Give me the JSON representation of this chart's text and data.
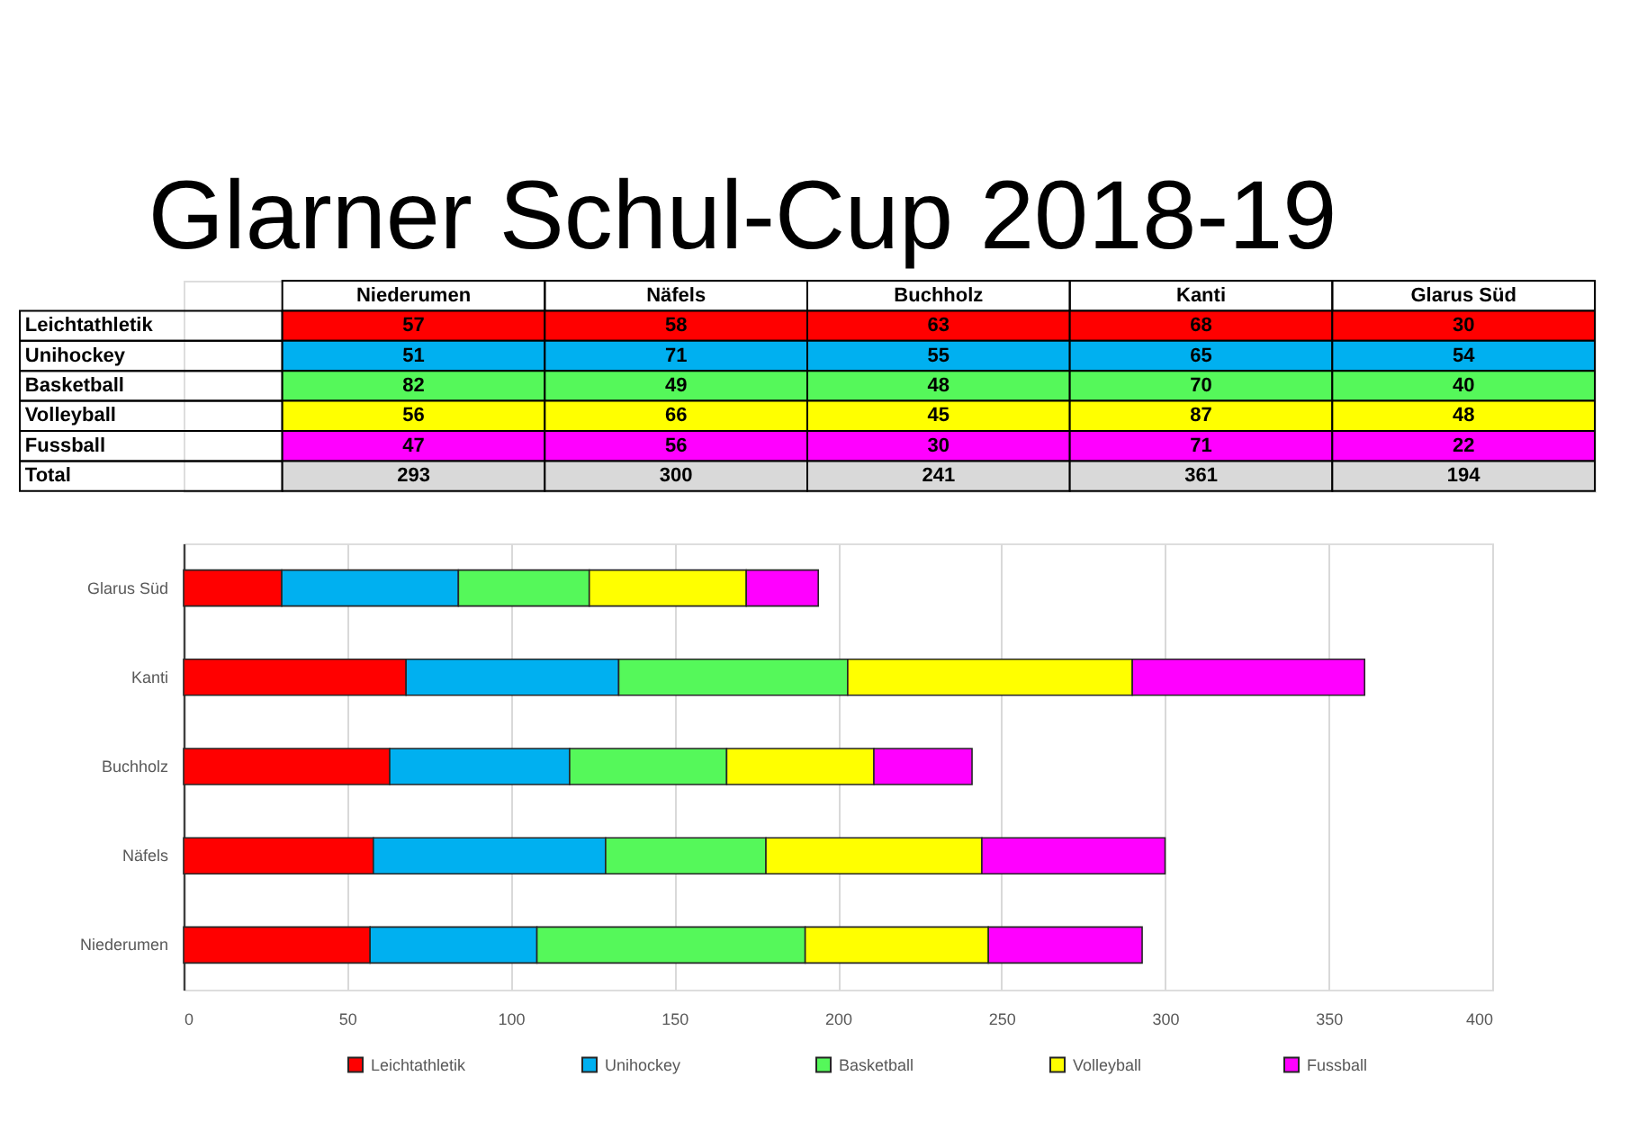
{
  "chart_data": [
    {
      "type": "heatmap",
      "title": "Glarner Schul-Cup 2018-19",
      "categories": [
        "Niederumen",
        "Näfels",
        "Buchholz",
        "Kanti",
        "Glarus Süd"
      ],
      "y_categories": [
        "Leichtathletik",
        "Unihockey",
        "Basketball",
        "Volleyball",
        "Fussball",
        "Total"
      ],
      "cells": [
        [
          57,
          58,
          63,
          68,
          30
        ],
        [
          51,
          71,
          55,
          65,
          54
        ],
        [
          82,
          49,
          48,
          70,
          40
        ],
        [
          56,
          66,
          45,
          87,
          48
        ],
        [
          47,
          56,
          30,
          71,
          22
        ],
        [
          293,
          300,
          241,
          361,
          194
        ]
      ],
      "data_labels": true
    },
    {
      "type": "bar",
      "orientation": "horizontal",
      "stacked": true,
      "categories": [
        "Glarus Süd",
        "Kanti",
        "Buchholz",
        "Näfels",
        "Niederumen"
      ],
      "series": [
        {
          "name": "Leichtathletik",
          "color": "#ff0000",
          "values": [
            30,
            68,
            63,
            58,
            57
          ]
        },
        {
          "name": "Unihockey",
          "color": "#00b0f0",
          "values": [
            54,
            65,
            55,
            71,
            51
          ]
        },
        {
          "name": "Basketball",
          "color": "#55f85a",
          "values": [
            40,
            70,
            48,
            49,
            82
          ]
        },
        {
          "name": "Volleyball",
          "color": "#ffff00",
          "values": [
            48,
            87,
            45,
            66,
            56
          ]
        },
        {
          "name": "Fussball",
          "color": "#ff00ff",
          "values": [
            22,
            71,
            30,
            56,
            47
          ]
        }
      ],
      "xlim": [
        0,
        400
      ],
      "xticks": [
        0,
        50,
        100,
        150,
        200,
        250,
        300,
        350,
        400
      ],
      "grid": "x",
      "legend": "bottom"
    }
  ]
}
